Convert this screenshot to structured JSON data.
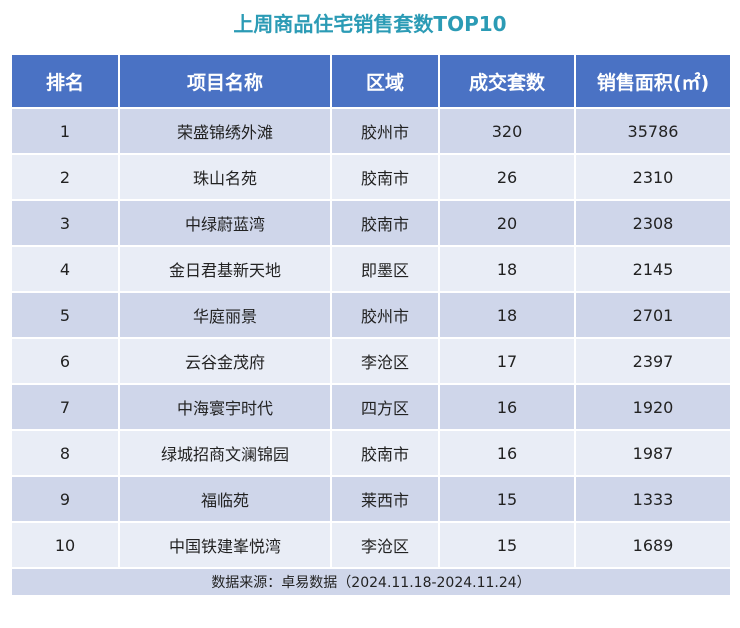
{
  "title": "上周商品住宅销售套数TOP10",
  "headers": {
    "rank": "排名",
    "project": "项目名称",
    "district": "区域",
    "units": "成交套数",
    "area": "销售面积(㎡)"
  },
  "rows": [
    {
      "rank": "1",
      "project": "荣盛锦绣外滩",
      "district": "胶州市",
      "units": "320",
      "area": "35786"
    },
    {
      "rank": "2",
      "project": "珠山名苑",
      "district": "胶南市",
      "units": "26",
      "area": "2310"
    },
    {
      "rank": "3",
      "project": "中绿蔚蓝湾",
      "district": "胶南市",
      "units": "20",
      "area": "2308"
    },
    {
      "rank": "4",
      "project": "金日君基新天地",
      "district": "即墨区",
      "units": "18",
      "area": "2145"
    },
    {
      "rank": "5",
      "project": "华庭丽景",
      "district": "胶州市",
      "units": "18",
      "area": "2701"
    },
    {
      "rank": "6",
      "project": "云谷金茂府",
      "district": "李沧区",
      "units": "17",
      "area": "2397"
    },
    {
      "rank": "7",
      "project": "中海寰宇时代",
      "district": "四方区",
      "units": "16",
      "area": "1920"
    },
    {
      "rank": "8",
      "project": "绿城招商文澜锦园",
      "district": "胶南市",
      "units": "16",
      "area": "1987"
    },
    {
      "rank": "9",
      "project": "福临苑",
      "district": "莱西市",
      "units": "15",
      "area": "1333"
    },
    {
      "rank": "10",
      "project": "中国铁建峯悦湾",
      "district": "李沧区",
      "units": "15",
      "area": "1689"
    }
  ],
  "source": "数据来源：卓易数据（2024.11.18-2024.11.24）"
}
